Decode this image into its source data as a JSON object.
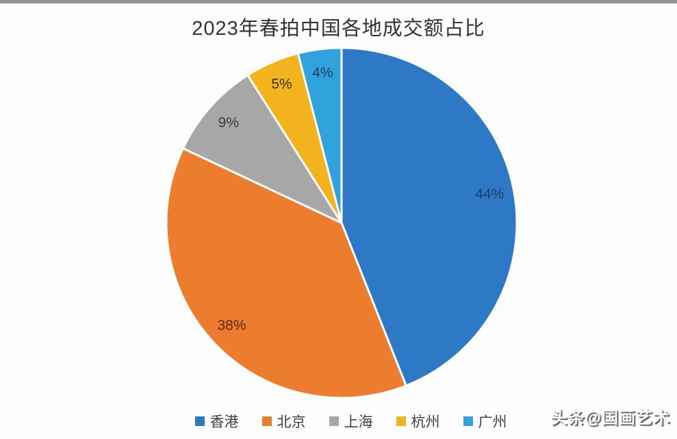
{
  "page": {
    "background": "#fdfdfd",
    "top_bar_color": "#8f948d"
  },
  "chart_data": {
    "type": "pie",
    "title": "2023年春拍中国各地成交额占比",
    "start_angle_deg": 0,
    "direction": "clockwise",
    "legend_position": "bottom",
    "slice_border_color": "#ffffff",
    "slices": [
      {
        "label": "香港",
        "value": 44,
        "pct_label": "44%",
        "color": "#2E79C6",
        "label_color": "#203f63"
      },
      {
        "label": "北京",
        "value": 38,
        "pct_label": "38%",
        "color": "#EC7D2E",
        "label_color": "#58290d"
      },
      {
        "label": "上海",
        "value": 9,
        "pct_label": "9%",
        "color": "#A7A7A7",
        "label_color": "#3c3c3c"
      },
      {
        "label": "杭州",
        "value": 5,
        "pct_label": "5%",
        "color": "#F2B31D",
        "label_color": "#403307"
      },
      {
        "label": "广州",
        "value": 4,
        "pct_label": "4%",
        "color": "#31A3DC",
        "label_color": "#1c3c5e"
      }
    ]
  },
  "watermark": {
    "text": "头条@国画艺术"
  }
}
